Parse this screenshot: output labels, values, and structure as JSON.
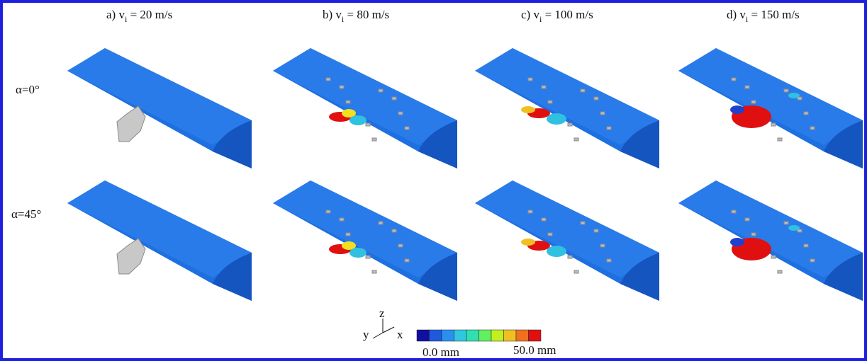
{
  "columns": [
    {
      "prefix": "a) v",
      "subscript": "i",
      "suffix": " = 20 m/s"
    },
    {
      "prefix": "b) v",
      "subscript": "i",
      "suffix": " = 80 m/s"
    },
    {
      "prefix": "c) v",
      "subscript": "i",
      "suffix": " = 100 m/s"
    },
    {
      "prefix": "d) v",
      "subscript": "i",
      "suffix": " = 150 m/s"
    }
  ],
  "rows": [
    "α=0°",
    "α=45°"
  ],
  "axes": {
    "z": "z",
    "y": "y",
    "x": "x"
  },
  "colorbar": {
    "min_label": "0.0 mm",
    "max_label": "50.0 mm"
  }
}
